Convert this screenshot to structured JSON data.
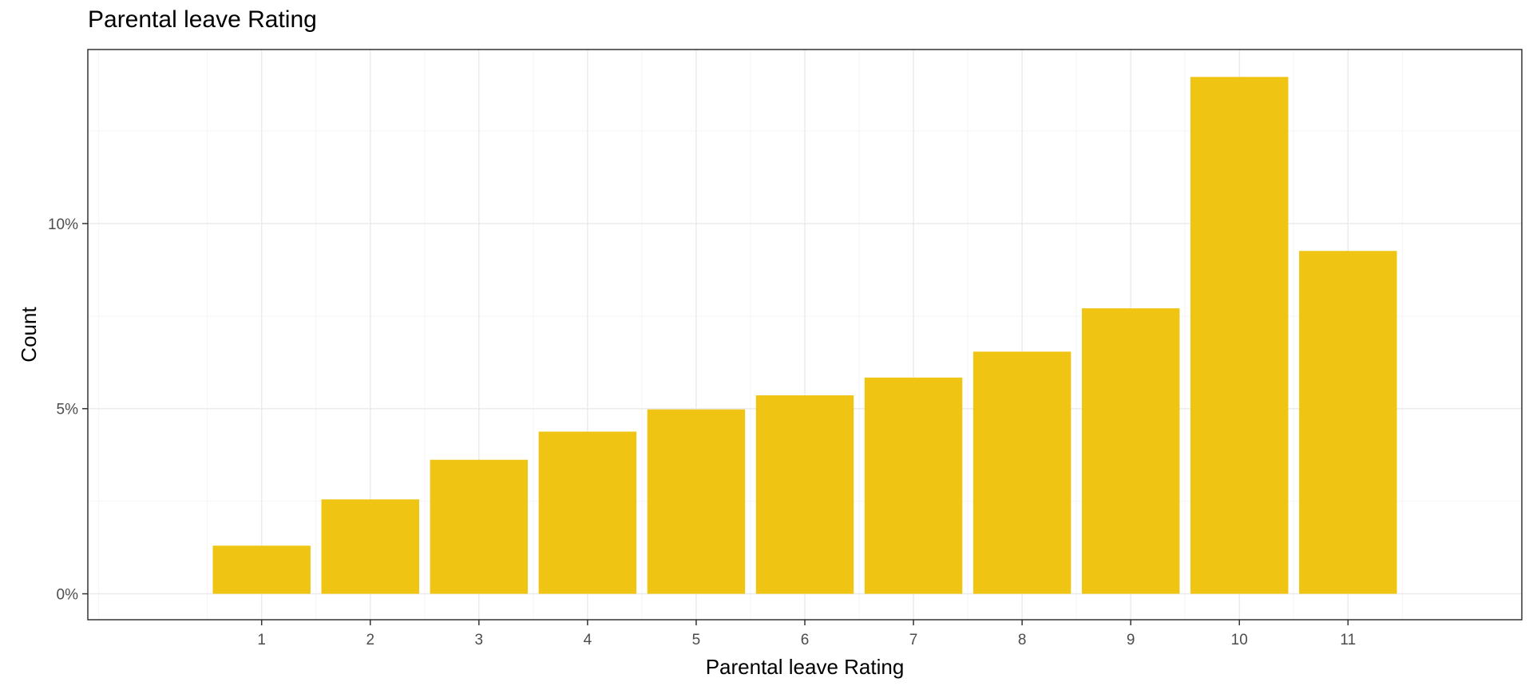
{
  "chart_data": {
    "type": "bar",
    "title": "Parental leave Rating",
    "xlabel": "Parental leave Rating",
    "ylabel": "Count",
    "categories": [
      "1",
      "2",
      "3",
      "4",
      "5",
      "6",
      "7",
      "8",
      "9",
      "10",
      "11"
    ],
    "values": [
      1.3,
      2.55,
      3.62,
      4.38,
      4.98,
      5.36,
      5.84,
      6.54,
      7.71,
      13.96,
      9.26
    ],
    "value_unit": "%",
    "ylim": [
      -0.7,
      14.7
    ],
    "xlim": [
      -0.6,
      12.6
    ],
    "y_ticks": [
      0,
      5,
      10
    ],
    "y_tick_labels": [
      "0%",
      "5%",
      "10%"
    ],
    "grid": true,
    "legend": "none",
    "colors": {
      "bar": "#F0C413",
      "grid_major": "#EBEBEB",
      "grid_minor": "#F5F5F5",
      "panel_border": "#333333",
      "tick_label": "#4D4D4D"
    }
  }
}
